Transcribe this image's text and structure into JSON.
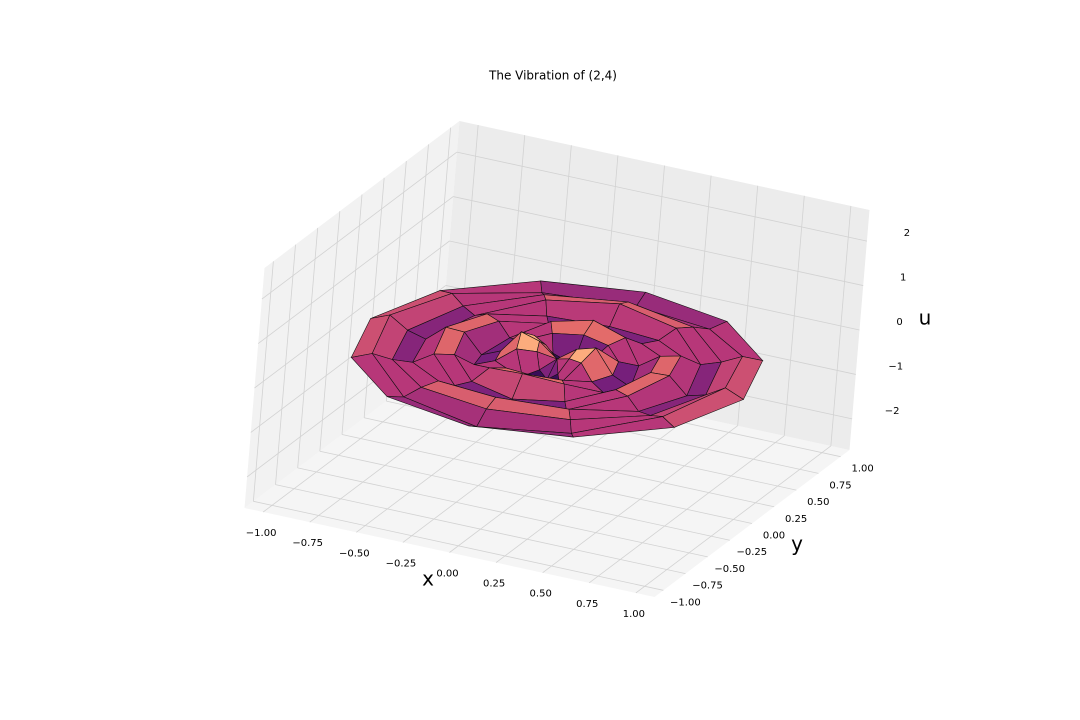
{
  "chart_data": {
    "type": "surface3d",
    "title": "The Vibration of (2,4)",
    "x_label": "x",
    "y_label": "y",
    "z_label": "u",
    "colormap": "magma",
    "xlim": [
      -1.1,
      1.1
    ],
    "ylim": [
      -1.1,
      1.1
    ],
    "zlim": [
      -2.7,
      2.7
    ],
    "xticks": [
      {
        "value": -1,
        "label": "−1.00"
      },
      {
        "value": -0.75,
        "label": "−0.75"
      },
      {
        "value": -0.5,
        "label": "−0.50"
      },
      {
        "value": -0.25,
        "label": "−0.25"
      },
      {
        "value": 0,
        "label": "0.00"
      },
      {
        "value": 0.25,
        "label": "0.25"
      },
      {
        "value": 0.5,
        "label": "0.50"
      },
      {
        "value": 0.75,
        "label": "0.75"
      },
      {
        "value": 1,
        "label": "1.00"
      }
    ],
    "yticks": [
      {
        "value": -1,
        "label": "−1.00"
      },
      {
        "value": -0.75,
        "label": "−0.75"
      },
      {
        "value": -0.5,
        "label": "−0.50"
      },
      {
        "value": -0.25,
        "label": "−0.25"
      },
      {
        "value": 0,
        "label": "0.00"
      },
      {
        "value": 0.25,
        "label": "0.25"
      },
      {
        "value": 0.5,
        "label": "0.50"
      },
      {
        "value": 0.75,
        "label": "0.75"
      },
      {
        "value": 1,
        "label": "1.00"
      }
    ],
    "zticks": [
      {
        "value": -2,
        "label": "−2"
      },
      {
        "value": -1,
        "label": "−1"
      },
      0,
      1,
      2
    ],
    "r": [
      0,
      0.1,
      0.2,
      0.3,
      0.4,
      0.5,
      0.6,
      0.7,
      0.8,
      0.9,
      1.0
    ],
    "theta": [
      0,
      30,
      60,
      90,
      120,
      150,
      180,
      210,
      240,
      270,
      300,
      330
    ],
    "z": [
      [
        0,
        0,
        0,
        0,
        0,
        0,
        0,
        0,
        0,
        0,
        0,
        0
      ],
      [
        0.31,
        0.16,
        -0.16,
        -0.31,
        -0.16,
        0.16,
        0.31,
        0.16,
        -0.16,
        -0.31,
        -0.16,
        0.16
      ],
      [
        0.43,
        0.22,
        -0.22,
        -0.43,
        -0.22,
        0.22,
        0.43,
        0.22,
        -0.22,
        -0.43,
        -0.22,
        0.22
      ],
      [
        -0.09,
        -0.05,
        0.05,
        0.09,
        0.05,
        -0.05,
        -0.09,
        -0.05,
        0.05,
        0.09,
        0.05,
        -0.05
      ],
      [
        -0.27,
        -0.14,
        0.14,
        0.27,
        0.14,
        -0.14,
        -0.27,
        -0.14,
        0.14,
        0.27,
        0.14,
        -0.14
      ],
      [
        0.15,
        0.08,
        -0.08,
        -0.15,
        -0.08,
        0.08,
        0.15,
        0.08,
        -0.08,
        -0.15,
        -0.08,
        0.08
      ],
      [
        0.17,
        0.09,
        -0.09,
        -0.17,
        -0.09,
        0.09,
        0.17,
        0.09,
        -0.09,
        -0.17,
        -0.09,
        0.09
      ],
      [
        -0.19,
        -0.1,
        0.1,
        0.19,
        0.1,
        -0.1,
        -0.19,
        -0.1,
        0.1,
        0.19,
        0.1,
        -0.1
      ],
      [
        -0.08,
        -0.04,
        0.04,
        0.08,
        0.04,
        -0.04,
        -0.08,
        -0.04,
        0.04,
        0.08,
        0.04,
        -0.04
      ],
      [
        0.17,
        0.09,
        -0.09,
        -0.17,
        -0.09,
        0.09,
        0.17,
        0.09,
        -0.09,
        -0.17,
        -0.09,
        0.09
      ],
      [
        0,
        0,
        0,
        0,
        0,
        0,
        0,
        0,
        0,
        0,
        0,
        0
      ]
    ]
  }
}
